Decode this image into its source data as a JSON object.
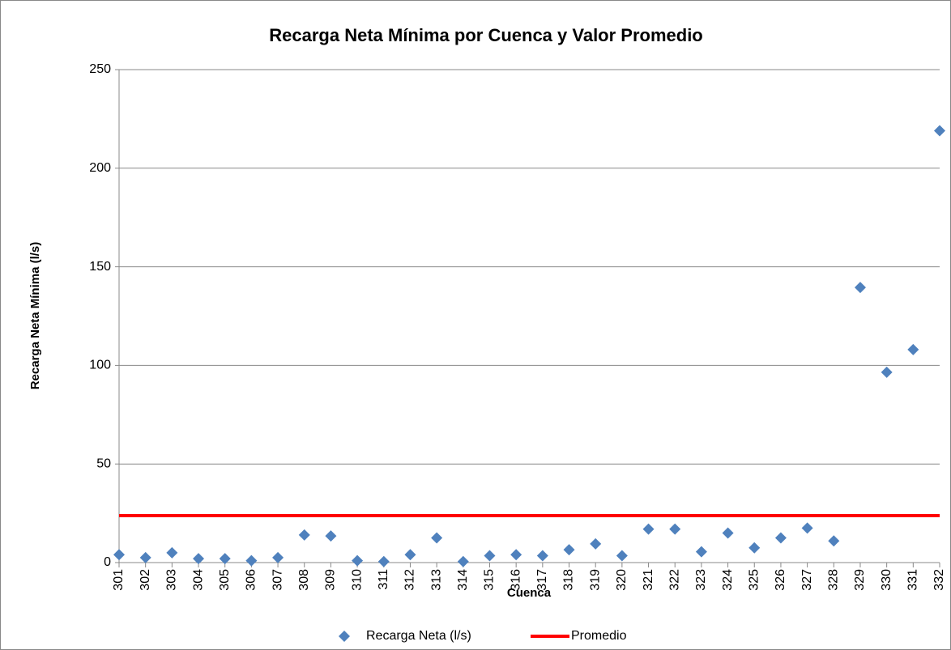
{
  "chart_data": {
    "type": "scatter",
    "title": "Recarga Neta Mínima por Cuenca y Valor Promedio",
    "x_label": "Cuenca",
    "y_label": "Recarga Neta Mínima (l/s)",
    "categories": [
      "301",
      "302",
      "303",
      "304",
      "305",
      "306",
      "307",
      "308",
      "309",
      "310",
      "311",
      "312",
      "313",
      "314",
      "315",
      "316",
      "317",
      "318",
      "319",
      "320",
      "321",
      "322",
      "323",
      "324",
      "325",
      "326",
      "327",
      "328",
      "329",
      "330",
      "331",
      "332"
    ],
    "series": [
      {
        "name": "Recarga Neta (l/s)",
        "color": "#4f81bd",
        "type": "scatter",
        "values": [
          4,
          2.5,
          5,
          2,
          2,
          1,
          2.5,
          14,
          13.5,
          1,
          0.5,
          4,
          12.5,
          0.5,
          3.5,
          4,
          3.5,
          6.5,
          9.5,
          3.5,
          17,
          17,
          5.5,
          15,
          7.5,
          12.5,
          17.5,
          11,
          139.5,
          96.5,
          108,
          219
        ]
      },
      {
        "name": "Promedio",
        "color": "#ff0000",
        "type": "line",
        "values": [
          23.8,
          23.8,
          23.8,
          23.8,
          23.8,
          23.8,
          23.8,
          23.8,
          23.8,
          23.8,
          23.8,
          23.8,
          23.8,
          23.8,
          23.8,
          23.8,
          23.8,
          23.8,
          23.8,
          23.8,
          23.8,
          23.8,
          23.8,
          23.8,
          23.8,
          23.8,
          23.8,
          23.8,
          23.8,
          23.8,
          23.8,
          23.8
        ]
      }
    ],
    "ylim": [
      0,
      250
    ],
    "yticks": [
      0,
      50,
      100,
      150,
      200,
      250
    ],
    "grid": true,
    "legend": "bottom"
  }
}
